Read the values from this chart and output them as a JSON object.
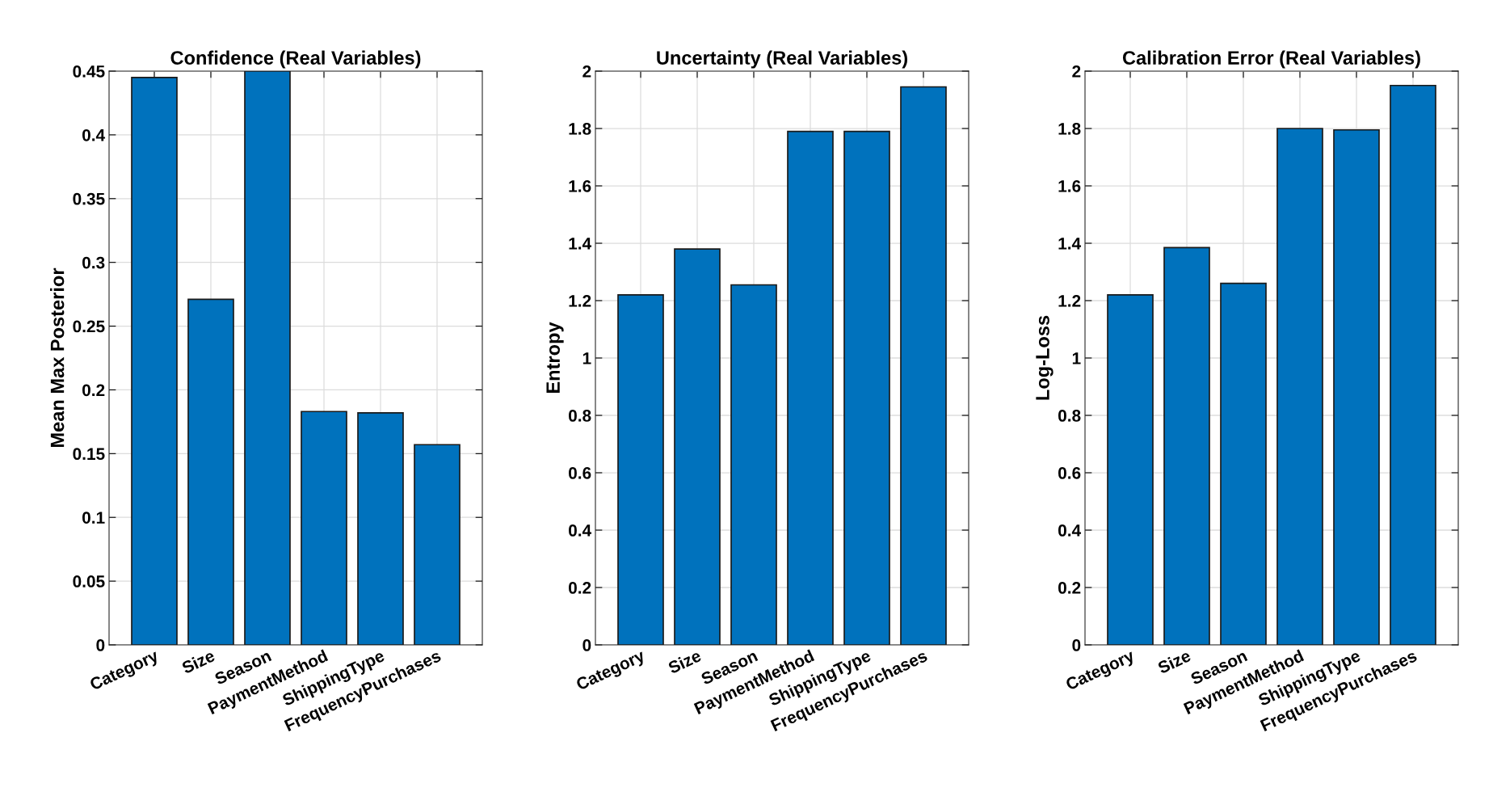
{
  "chart_data": [
    {
      "type": "bar",
      "title": "Confidence (Real Variables)",
      "ylabel": "Mean Max Posterior",
      "categories": [
        "Category",
        "Size",
        "Season",
        "PaymentMethod",
        "ShippingType",
        "FrequencyPurchases"
      ],
      "values": [
        0.445,
        0.271,
        0.45,
        0.183,
        0.182,
        0.157
      ],
      "color": "#0072bd",
      "ylim": [
        0,
        0.45
      ],
      "yticks": [
        0,
        0.05,
        0.1,
        0.15,
        0.2,
        0.25,
        0.3,
        0.35,
        0.4,
        0.45
      ],
      "grid": true
    },
    {
      "type": "bar",
      "title": "Uncertainty (Real Variables)",
      "ylabel": "Entropy",
      "categories": [
        "Category",
        "Size",
        "Season",
        "PaymentMethod",
        "ShippingType",
        "FrequencyPurchases"
      ],
      "values": [
        1.22,
        1.38,
        1.255,
        1.79,
        1.79,
        1.945
      ],
      "color": "#0072bd",
      "ylim": [
        0,
        2
      ],
      "yticks": [
        0,
        0.2,
        0.4,
        0.6,
        0.8,
        1,
        1.2,
        1.4,
        1.6,
        1.8,
        2
      ],
      "grid": true
    },
    {
      "type": "bar",
      "title": "Calibration Error (Real Variables)",
      "ylabel": "Log-Loss",
      "categories": [
        "Category",
        "Size",
        "Season",
        "PaymentMethod",
        "ShippingType",
        "FrequencyPurchases"
      ],
      "values": [
        1.22,
        1.385,
        1.26,
        1.8,
        1.795,
        1.95
      ],
      "color": "#0072bd",
      "ylim": [
        0,
        2
      ],
      "yticks": [
        0,
        0.2,
        0.4,
        0.6,
        0.8,
        1,
        1.2,
        1.4,
        1.6,
        1.8,
        2
      ],
      "grid": true
    }
  ]
}
